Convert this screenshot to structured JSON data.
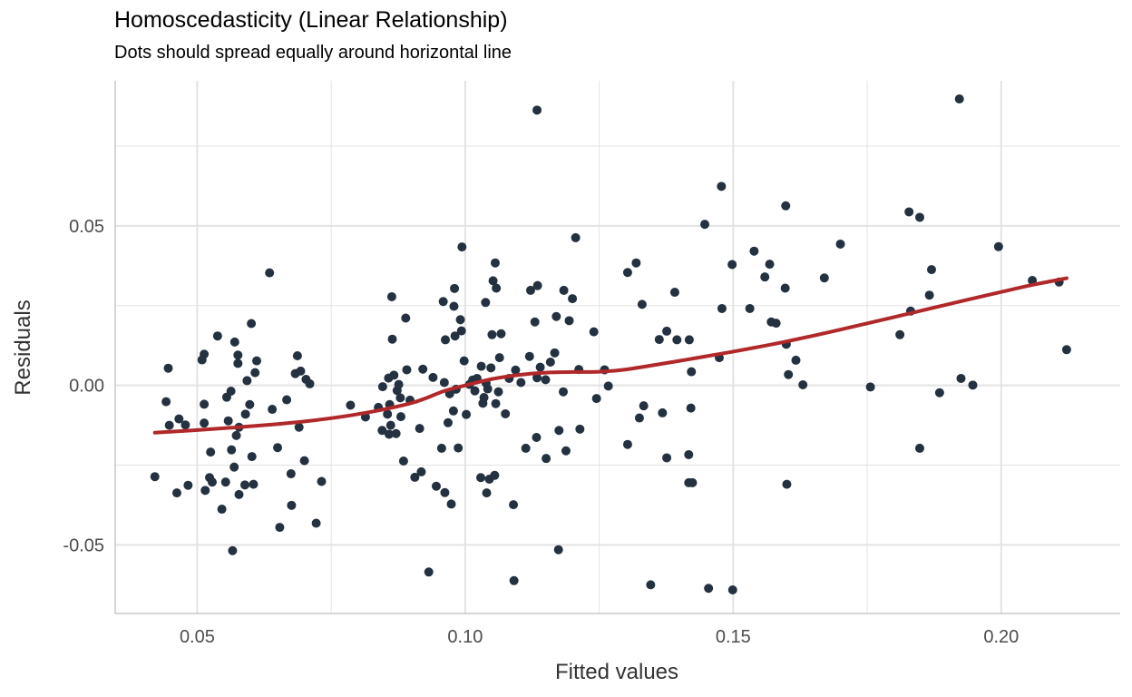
{
  "colors": {
    "points": "#233140",
    "smooth": "#b0282a",
    "grid": "#e3e3e3",
    "axis": "#c8c8c8"
  },
  "chart_data": {
    "type": "scatter",
    "title": "Homoscedasticity (Linear Relationship)",
    "subtitle": "Dots should spread equally around horizontal line",
    "xlabel": "Fitted values",
    "ylabel": "Residuals",
    "xlim": [
      0.0347,
      0.2222
    ],
    "ylim": [
      -0.0715,
      0.0955
    ],
    "x_ticks": [
      0.05,
      0.1,
      0.15,
      0.2
    ],
    "x_tick_labels": [
      "0.05",
      "0.10",
      "0.15",
      "0.20"
    ],
    "y_ticks": [
      -0.05,
      0.0,
      0.05
    ],
    "y_tick_labels": [
      "-0.05",
      "0.00",
      "0.05"
    ],
    "grid": true,
    "legend": "none",
    "series": [
      {
        "type": "scatter",
        "points": [
          [
            0.0421,
            -0.0286
          ],
          [
            0.0442,
            -0.0051
          ],
          [
            0.0446,
            0.0054
          ],
          [
            0.0448,
            -0.0125
          ],
          [
            0.0462,
            -0.0337
          ],
          [
            0.0466,
            -0.0105
          ],
          [
            0.0478,
            -0.0124
          ],
          [
            0.0483,
            -0.0313
          ],
          [
            0.0509,
            0.008
          ],
          [
            0.0513,
            0.0098
          ],
          [
            0.0513,
            -0.0059
          ],
          [
            0.0513,
            -0.0118
          ],
          [
            0.0515,
            -0.0329
          ],
          [
            0.0523,
            -0.0289
          ],
          [
            0.0525,
            -0.0209
          ],
          [
            0.0528,
            -0.0303
          ],
          [
            0.0538,
            0.0155
          ],
          [
            0.0546,
            -0.0388
          ],
          [
            0.0553,
            -0.0303
          ],
          [
            0.0555,
            -0.0037
          ],
          [
            0.0558,
            -0.0111
          ],
          [
            0.0563,
            -0.0018
          ],
          [
            0.0564,
            -0.0202
          ],
          [
            0.0566,
            -0.0518
          ],
          [
            0.0569,
            -0.0256
          ],
          [
            0.057,
            0.0136
          ],
          [
            0.0573,
            -0.0157
          ],
          [
            0.0576,
            0.0095
          ],
          [
            0.0576,
            0.0069
          ],
          [
            0.0578,
            -0.0131
          ],
          [
            0.0578,
            -0.0342
          ],
          [
            0.0589,
            -0.0312
          ],
          [
            0.059,
            -0.009
          ],
          [
            0.0593,
            0.0015
          ],
          [
            0.0598,
            -0.006
          ],
          [
            0.0601,
            0.0194
          ],
          [
            0.0602,
            -0.0223
          ],
          [
            0.0605,
            -0.031
          ],
          [
            0.0608,
            0.004
          ],
          [
            0.0611,
            0.0077
          ],
          [
            0.0635,
            0.0353
          ],
          [
            0.064,
            -0.0075
          ],
          [
            0.065,
            -0.0195
          ],
          [
            0.0654,
            -0.0445
          ],
          [
            0.0667,
            -0.0045
          ],
          [
            0.0675,
            -0.0277
          ],
          [
            0.0676,
            -0.0376
          ],
          [
            0.0683,
            0.0037
          ],
          [
            0.0687,
            0.0093
          ],
          [
            0.069,
            -0.0131
          ],
          [
            0.0693,
            0.0045
          ],
          [
            0.07,
            -0.0236
          ],
          [
            0.0703,
            0.0019
          ],
          [
            0.071,
            0.0005
          ],
          [
            0.0722,
            -0.0432
          ],
          [
            0.0732,
            -0.0301
          ],
          [
            0.0786,
            -0.0062
          ],
          [
            0.0814,
            -0.0099
          ],
          [
            0.0838,
            -0.0069
          ],
          [
            0.0845,
            -0.0141
          ],
          [
            0.0846,
            -0.0004
          ],
          [
            0.0855,
            -0.009
          ],
          [
            0.0857,
            0.0023
          ],
          [
            0.0858,
            -0.0153
          ],
          [
            0.0859,
            -0.006
          ],
          [
            0.0861,
            -0.0125
          ],
          [
            0.0863,
            0.0278
          ],
          [
            0.0864,
            0.0145
          ],
          [
            0.0867,
            0.0032
          ],
          [
            0.0871,
            -0.0151
          ],
          [
            0.0873,
            -0.0016
          ],
          [
            0.0876,
            0.0003
          ],
          [
            0.0879,
            -0.0039
          ],
          [
            0.088,
            -0.0098
          ],
          [
            0.0885,
            -0.0237
          ],
          [
            0.0889,
            0.0211
          ],
          [
            0.0891,
            0.0049
          ],
          [
            0.0897,
            -0.0046
          ],
          [
            0.0906,
            -0.0288
          ],
          [
            0.0915,
            -0.0135
          ],
          [
            0.0918,
            -0.0271
          ],
          [
            0.0921,
            0.0051
          ],
          [
            0.0932,
            -0.0585
          ],
          [
            0.094,
            0.0025
          ],
          [
            0.0946,
            -0.0316
          ],
          [
            0.0956,
            -0.0197
          ],
          [
            0.0959,
            0.0263
          ],
          [
            0.0961,
            0.0009
          ],
          [
            0.0962,
            -0.0336
          ],
          [
            0.0963,
            0.0143
          ],
          [
            0.0968,
            -0.0117
          ],
          [
            0.0971,
            -0.0026
          ],
          [
            0.0974,
            -0.0372
          ],
          [
            0.0978,
            -0.008
          ],
          [
            0.0979,
            0.0248
          ],
          [
            0.098,
            0.0304
          ],
          [
            0.0981,
            0.0155
          ],
          [
            0.0983,
            -0.0012
          ],
          [
            0.0987,
            -0.0196
          ],
          [
            0.0991,
            0.0206
          ],
          [
            0.0993,
            0.0171
          ],
          [
            0.0994,
            0.0434
          ],
          [
            0.0998,
            0.0077
          ],
          [
            0.1002,
            -0.0091
          ],
          [
            0.1008,
            0.0003
          ],
          [
            0.1014,
            0.0017
          ],
          [
            0.1018,
            -0.0017
          ],
          [
            0.1022,
            0.0022
          ],
          [
            0.1029,
            -0.0289
          ],
          [
            0.103,
            0.006
          ],
          [
            0.1033,
            -0.0056
          ],
          [
            0.1035,
            -0.0038
          ],
          [
            0.1038,
            0.026
          ],
          [
            0.1039,
            0.0007
          ],
          [
            0.104,
            -0.0337
          ],
          [
            0.1042,
            -0.0011
          ],
          [
            0.1045,
            -0.0294
          ],
          [
            0.1048,
            0.0055
          ],
          [
            0.105,
            0.0159
          ],
          [
            0.1052,
            0.0328
          ],
          [
            0.1055,
            -0.0282
          ],
          [
            0.1056,
            0.0384
          ],
          [
            0.1057,
            -0.0057
          ],
          [
            0.1058,
            0.0305
          ],
          [
            0.1062,
            -0.002
          ],
          [
            0.1064,
            0.0087
          ],
          [
            0.1067,
            0.0162
          ],
          [
            0.1075,
            -0.0089
          ],
          [
            0.1082,
            0.0022
          ],
          [
            0.109,
            -0.0374
          ],
          [
            0.1091,
            -0.0612
          ],
          [
            0.1094,
            0.0048
          ],
          [
            0.1104,
            0.0009
          ],
          [
            0.1113,
            -0.0197
          ],
          [
            0.112,
            0.0091
          ],
          [
            0.1122,
            0.0298
          ],
          [
            0.113,
            0.0199
          ],
          [
            0.1133,
            -0.0163
          ],
          [
            0.1134,
            0.0024
          ],
          [
            0.1134,
            0.0863
          ],
          [
            0.1135,
            0.0313
          ],
          [
            0.114,
            0.0057
          ],
          [
            0.115,
            0.0018
          ],
          [
            0.1151,
            -0.0229
          ],
          [
            0.1159,
            0.0073
          ],
          [
            0.1167,
            0.0102
          ],
          [
            0.117,
            0.0216
          ],
          [
            0.1174,
            -0.0515
          ],
          [
            0.1175,
            -0.0141
          ],
          [
            0.1183,
            -0.002
          ],
          [
            0.1184,
            0.0298
          ],
          [
            0.1188,
            -0.0205
          ],
          [
            0.1194,
            0.0203
          ],
          [
            0.12,
            0.0272
          ],
          [
            0.1206,
            0.0463
          ],
          [
            0.1212,
            0.005
          ],
          [
            0.1214,
            -0.0137
          ],
          [
            0.124,
            0.0168
          ],
          [
            0.1245,
            -0.0041
          ],
          [
            0.126,
            0.0049
          ],
          [
            0.1267,
            -0.0002
          ],
          [
            0.1303,
            -0.0185
          ],
          [
            0.1303,
            0.0354
          ],
          [
            0.1319,
            0.0384
          ],
          [
            0.1325,
            -0.0102
          ],
          [
            0.133,
            0.0254
          ],
          [
            0.1333,
            -0.0064
          ],
          [
            0.1346,
            -0.0625
          ],
          [
            0.1362,
            0.0144
          ],
          [
            0.1368,
            -0.0086
          ],
          [
            0.1376,
            -0.0227
          ],
          [
            0.1376,
            0.017
          ],
          [
            0.1391,
            0.0292
          ],
          [
            0.1395,
            0.0143
          ],
          [
            0.1417,
            -0.0217
          ],
          [
            0.1417,
            -0.0305
          ],
          [
            0.1418,
            0.0143
          ],
          [
            0.1421,
            -0.0071
          ],
          [
            0.1422,
            0.0043
          ],
          [
            0.1424,
            -0.0305
          ],
          [
            0.1447,
            0.0505
          ],
          [
            0.1454,
            -0.0636
          ],
          [
            0.1474,
            0.0087
          ],
          [
            0.1478,
            0.0624
          ],
          [
            0.1479,
            0.0241
          ],
          [
            0.1498,
            0.0379
          ],
          [
            0.1499,
            -0.0641
          ],
          [
            0.1531,
            0.0241
          ],
          [
            0.1539,
            0.0421
          ],
          [
            0.1559,
            0.034
          ],
          [
            0.1568,
            0.038
          ],
          [
            0.1571,
            0.0199
          ],
          [
            0.158,
            0.0195
          ],
          [
            0.1597,
            0.0305
          ],
          [
            0.1598,
            0.0563
          ],
          [
            0.1599,
            0.0129
          ],
          [
            0.16,
            -0.031
          ],
          [
            0.1603,
            0.0034
          ],
          [
            0.1617,
            0.0079
          ],
          [
            0.163,
            0.0002
          ],
          [
            0.167,
            0.0337
          ],
          [
            0.17,
            0.0443
          ],
          [
            0.1756,
            -0.0005
          ],
          [
            0.1811,
            0.0159
          ],
          [
            0.1828,
            0.0544
          ],
          [
            0.1831,
            0.0233
          ],
          [
            0.1848,
            0.0527
          ],
          [
            0.1848,
            -0.0197
          ],
          [
            0.1866,
            0.0283
          ],
          [
            0.187,
            0.0363
          ],
          [
            0.1885,
            -0.0023
          ],
          [
            0.1922,
            0.0898
          ],
          [
            0.1925,
            0.0022
          ],
          [
            0.1947,
            0.0001
          ],
          [
            0.1995,
            0.0435
          ],
          [
            0.2058,
            0.0329
          ],
          [
            0.2108,
            0.0324
          ],
          [
            0.2122,
            0.0112
          ]
        ]
      },
      {
        "type": "line",
        "smooth": true,
        "points": [
          [
            0.0421,
            -0.0148
          ],
          [
            0.05,
            -0.014
          ],
          [
            0.06,
            -0.0128
          ],
          [
            0.07,
            -0.0113
          ],
          [
            0.08,
            -0.009
          ],
          [
            0.09,
            -0.0055
          ],
          [
            0.096,
            -0.0018
          ],
          [
            0.1,
            0.0
          ],
          [
            0.105,
            0.002
          ],
          [
            0.11,
            0.0033
          ],
          [
            0.115,
            0.004
          ],
          [
            0.12,
            0.0042
          ],
          [
            0.125,
            0.0043
          ],
          [
            0.13,
            0.005
          ],
          [
            0.14,
            0.0077
          ],
          [
            0.15,
            0.0106
          ],
          [
            0.16,
            0.0138
          ],
          [
            0.17,
            0.0175
          ],
          [
            0.18,
            0.0214
          ],
          [
            0.19,
            0.0254
          ],
          [
            0.2,
            0.0293
          ],
          [
            0.2058,
            0.0315
          ],
          [
            0.2122,
            0.0336
          ]
        ]
      }
    ]
  }
}
